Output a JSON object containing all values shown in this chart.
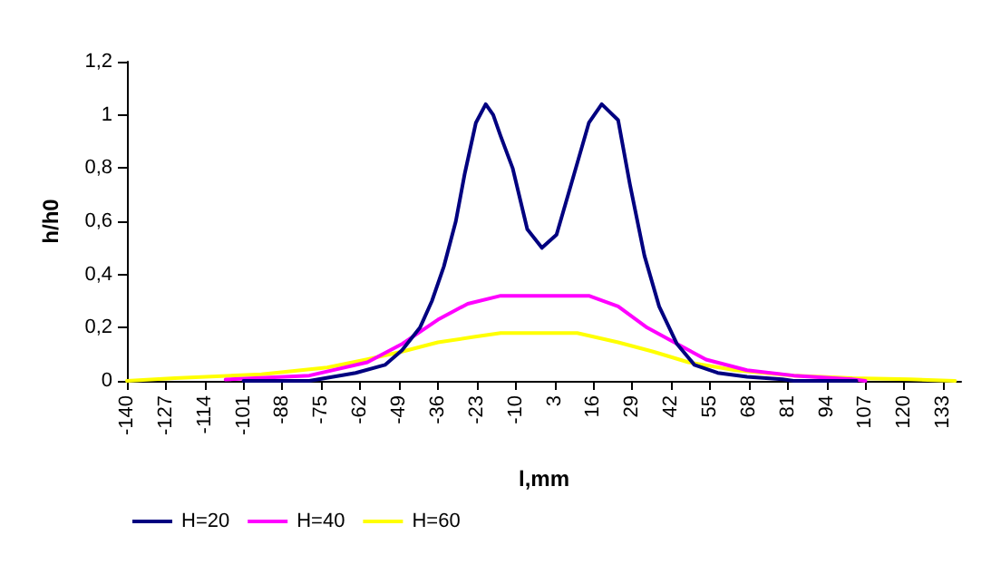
{
  "chart_data": {
    "type": "line",
    "xlabel": "l,mm",
    "ylabel": "h/h0",
    "xlim": [
      -140,
      139
    ],
    "xticks": [
      -140,
      -127,
      -114,
      -101,
      -88,
      -75,
      -62,
      -49,
      -36,
      -23,
      -10,
      3,
      16,
      29,
      42,
      55,
      68,
      81,
      94,
      107,
      120,
      133
    ],
    "ylim": [
      0,
      1.2
    ],
    "yticks": [
      {
        "value": 0,
        "label": "0"
      },
      {
        "value": 0.2,
        "label": "0,2"
      },
      {
        "value": 0.4,
        "label": "0,4"
      },
      {
        "value": 0.6,
        "label": "0,6"
      },
      {
        "value": 0.8,
        "label": "0,8"
      },
      {
        "value": 1,
        "label": "1"
      },
      {
        "value": 1.2,
        "label": "1,2"
      }
    ],
    "grid": false,
    "legend": "bottom left",
    "marker": "none",
    "line_style": "solid",
    "series": [
      {
        "name": "H=20",
        "color": "#000080",
        "x": [
          -101,
          -79,
          -63.5,
          -53.7,
          -48,
          -42,
          -38,
          -34,
          -30,
          -27,
          -23.3,
          -20,
          -17.5,
          -15,
          -11,
          -6.1,
          -1.2,
          3.7,
          8.6,
          14.5,
          18.8,
          24.3,
          28.2,
          33.1,
          38,
          43.9,
          49.8,
          57.6,
          67.4,
          79.2,
          83,
          104
        ],
        "values": [
          0,
          0,
          0.03,
          0.06,
          0.115,
          0.2,
          0.3,
          0.43,
          0.6,
          0.78,
          0.97,
          1.04,
          1,
          0.92,
          0.8,
          0.57,
          0.5,
          0.55,
          0.74,
          0.97,
          1.04,
          0.98,
          0.74,
          0.47,
          0.28,
          0.14,
          0.06,
          0.03,
          0.015,
          0.006,
          0,
          0
        ]
      },
      {
        "name": "H=40",
        "color": "#ff00ff",
        "x": [
          -107,
          -79,
          -59.6,
          -47.8,
          -36,
          -26,
          -15,
          -5.1,
          4.7,
          14.5,
          24.3,
          34,
          43.9,
          53.7,
          67.4,
          83,
          102.6,
          107
        ],
        "values": [
          0.005,
          0.02,
          0.07,
          0.14,
          0.23,
          0.29,
          0.32,
          0.32,
          0.32,
          0.32,
          0.28,
          0.2,
          0.14,
          0.08,
          0.04,
          0.02,
          0.006,
          0
        ]
      },
      {
        "name": "H=60",
        "color": "#ffff00",
        "x": [
          -140,
          -124,
          -95,
          -73,
          -60,
          -48,
          -36,
          -24,
          -15,
          -5,
          10.6,
          24.3,
          36,
          47.8,
          63.5,
          83,
          102.6,
          122,
          137
        ],
        "values": [
          0,
          0.01,
          0.025,
          0.05,
          0.08,
          0.11,
          0.145,
          0.165,
          0.18,
          0.18,
          0.18,
          0.145,
          0.11,
          0.07,
          0.04,
          0.02,
          0.01,
          0.006,
          0
        ]
      }
    ]
  }
}
